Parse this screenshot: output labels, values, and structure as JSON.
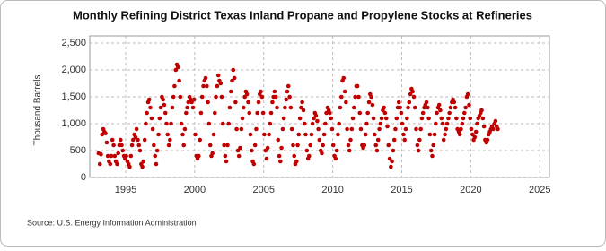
{
  "chart_data": {
    "type": "scatter",
    "title": "Monthly Refining District Texas Inland Propane and Propylene Stocks at Refineries",
    "y_label": "Thousand Barrels",
    "source": "Source: U.S. Energy Information Administration",
    "color": "#c00000",
    "grid": true,
    "xlim": [
      1992.4,
      2025.7
    ],
    "xticks": [
      1995,
      2000,
      2005,
      2010,
      2015,
      2020,
      2025
    ],
    "ylim": [
      0,
      2500
    ],
    "yticks": [
      0,
      500,
      {
        "value": 1000,
        "label": "1,000"
      },
      {
        "value": 1500,
        "label": "1,500"
      },
      {
        "value": 2000,
        "label": "2,000"
      },
      {
        "value": 2500,
        "label": "2,500"
      }
    ],
    "x": [
      1993.04,
      1993.13,
      1993.21,
      1993.29,
      1993.38,
      1993.46,
      1993.54,
      1993.63,
      1993.71,
      1993.79,
      1993.88,
      1993.96,
      1994.04,
      1994.13,
      1994.21,
      1994.29,
      1994.38,
      1994.46,
      1994.54,
      1994.63,
      1994.71,
      1994.79,
      1994.88,
      1994.96,
      1995.04,
      1995.13,
      1995.21,
      1995.29,
      1995.38,
      1995.46,
      1995.54,
      1995.63,
      1995.71,
      1995.79,
      1995.88,
      1995.96,
      1996.04,
      1996.13,
      1996.21,
      1996.29,
      1996.38,
      1996.46,
      1996.54,
      1996.63,
      1996.71,
      1996.79,
      1996.88,
      1996.96,
      1997.04,
      1997.13,
      1997.21,
      1997.29,
      1997.38,
      1997.46,
      1997.54,
      1997.63,
      1997.71,
      1997.79,
      1997.88,
      1997.96,
      1998.04,
      1998.13,
      1998.21,
      1998.29,
      1998.38,
      1998.46,
      1998.54,
      1998.63,
      1998.71,
      1998.79,
      1998.88,
      1998.96,
      1999.04,
      1999.13,
      1999.21,
      1999.29,
      1999.38,
      1999.46,
      1999.54,
      1999.63,
      1999.71,
      1999.79,
      1999.88,
      1999.96,
      2000.04,
      2000.13,
      2000.21,
      2000.29,
      2000.38,
      2000.46,
      2000.54,
      2000.63,
      2000.71,
      2000.79,
      2000.88,
      2000.96,
      2001.04,
      2001.13,
      2001.21,
      2001.29,
      2001.38,
      2001.46,
      2001.54,
      2001.63,
      2001.71,
      2001.79,
      2001.88,
      2001.96,
      2002.04,
      2002.13,
      2002.21,
      2002.29,
      2002.38,
      2002.46,
      2002.54,
      2002.63,
      2002.71,
      2002.79,
      2002.88,
      2002.96,
      2003.04,
      2003.13,
      2003.21,
      2003.29,
      2003.38,
      2003.46,
      2003.54,
      2003.63,
      2003.71,
      2003.79,
      2003.88,
      2003.96,
      2004.04,
      2004.13,
      2004.21,
      2004.29,
      2004.38,
      2004.46,
      2004.54,
      2004.63,
      2004.71,
      2004.79,
      2004.88,
      2004.96,
      2005.04,
      2005.13,
      2005.21,
      2005.29,
      2005.38,
      2005.46,
      2005.54,
      2005.63,
      2005.71,
      2005.79,
      2005.88,
      2005.96,
      2006.04,
      2006.13,
      2006.21,
      2006.29,
      2006.38,
      2006.46,
      2006.54,
      2006.63,
      2006.71,
      2006.79,
      2006.88,
      2006.96,
      2007.04,
      2007.13,
      2007.21,
      2007.29,
      2007.38,
      2007.46,
      2007.54,
      2007.63,
      2007.71,
      2007.79,
      2007.88,
      2007.96,
      2008.04,
      2008.13,
      2008.21,
      2008.29,
      2008.38,
      2008.46,
      2008.54,
      2008.63,
      2008.71,
      2008.79,
      2008.88,
      2008.96,
      2009.04,
      2009.13,
      2009.21,
      2009.29,
      2009.38,
      2009.46,
      2009.54,
      2009.63,
      2009.71,
      2009.79,
      2009.88,
      2009.96,
      2010.04,
      2010.13,
      2010.21,
      2010.29,
      2010.38,
      2010.46,
      2010.54,
      2010.63,
      2010.71,
      2010.79,
      2010.88,
      2010.96,
      2011.04,
      2011.13,
      2011.21,
      2011.29,
      2011.38,
      2011.46,
      2011.54,
      2011.63,
      2011.71,
      2011.79,
      2011.88,
      2011.96,
      2012.04,
      2012.13,
      2012.21,
      2012.29,
      2012.38,
      2012.46,
      2012.54,
      2012.63,
      2012.71,
      2012.79,
      2012.88,
      2012.96,
      2013.04,
      2013.13,
      2013.21,
      2013.29,
      2013.38,
      2013.46,
      2013.54,
      2013.63,
      2013.71,
      2013.79,
      2013.88,
      2013.96,
      2014.04,
      2014.13,
      2014.21,
      2014.29,
      2014.38,
      2014.46,
      2014.54,
      2014.63,
      2014.71,
      2014.79,
      2014.88,
      2014.96,
      2015.04,
      2015.13,
      2015.21,
      2015.29,
      2015.38,
      2015.46,
      2015.54,
      2015.63,
      2015.71,
      2015.79,
      2015.88,
      2015.96,
      2016.04,
      2016.13,
      2016.21,
      2016.29,
      2016.38,
      2016.46,
      2016.54,
      2016.63,
      2016.71,
      2016.79,
      2016.88,
      2016.96,
      2017.04,
      2017.13,
      2017.21,
      2017.29,
      2017.38,
      2017.46,
      2017.54,
      2017.63,
      2017.71,
      2017.79,
      2017.88,
      2017.96,
      2018.04,
      2018.13,
      2018.21,
      2018.29,
      2018.38,
      2018.46,
      2018.54,
      2018.63,
      2018.71,
      2018.79,
      2018.88,
      2018.96,
      2019.04,
      2019.13,
      2019.21,
      2019.29,
      2019.38,
      2019.46,
      2019.54,
      2019.63,
      2019.71,
      2019.79,
      2019.88,
      2019.96,
      2020.04,
      2020.13,
      2020.21,
      2020.29,
      2020.38,
      2020.46,
      2020.54,
      2020.63,
      2020.71,
      2020.79,
      2020.88,
      2020.96,
      2021.04,
      2021.13,
      2021.21,
      2021.29,
      2021.38,
      2021.46,
      2021.54,
      2021.63,
      2021.71,
      2021.79,
      2021.88,
      2021.96
    ],
    "values": [
      450,
      250,
      430,
      800,
      900,
      850,
      820,
      650,
      400,
      300,
      250,
      400,
      700,
      600,
      400,
      300,
      250,
      450,
      600,
      700,
      600,
      500,
      400,
      350,
      400,
      300,
      250,
      200,
      400,
      600,
      700,
      800,
      750,
      900,
      700,
      600,
      500,
      250,
      200,
      300,
      700,
      1000,
      1200,
      1400,
      1450,
      1300,
      1100,
      900,
      600,
      400,
      250,
      500,
      800,
      1100,
      1300,
      1500,
      1450,
      1350,
      1200,
      1000,
      800,
      600,
      700,
      1000,
      1300,
      1500,
      1700,
      2000,
      2100,
      2050,
      1800,
      1500,
      1000,
      800,
      600,
      900,
      1200,
      1300,
      1400,
      1500,
      1450,
      1400,
      1300,
      1450,
      800,
      400,
      350,
      400,
      700,
      1200,
      1500,
      1700,
      1800,
      1850,
      1700,
      1400,
      1000,
      600,
      400,
      450,
      800,
      1200,
      1500,
      1700,
      1900,
      1800,
      1750,
      1500,
      1000,
      600,
      400,
      300,
      600,
      1000,
      1300,
      1600,
      1800,
      2000,
      1850,
      1400,
      900,
      500,
      400,
      550,
      900,
      1100,
      1300,
      1500,
      1600,
      1550,
      1400,
      1200,
      800,
      500,
      300,
      250,
      600,
      900,
      1200,
      1400,
      1550,
      1600,
      1500,
      1200,
      800,
      500,
      350,
      550,
      800,
      1000,
      1200,
      1400,
      1500,
      1600,
      1500,
      1300,
      700,
      400,
      300,
      550,
      900,
      1100,
      1300,
      1450,
      1600,
      1700,
      1500,
      1300,
      900,
      600,
      400,
      250,
      300,
      600,
      800,
      1100,
      1300,
      1400,
      1250,
      1000,
      800,
      500,
      350,
      400,
      600,
      800,
      1000,
      1100,
      1200,
      1150,
      1050,
      900,
      700,
      500,
      450,
      600,
      800,
      1000,
      1200,
      1300,
      1250,
      1200,
      1100,
      900,
      600,
      400,
      350,
      500,
      800,
      1000,
      1300,
      1500,
      1800,
      1850,
      1600,
      1400,
      900,
      600,
      500,
      700,
      900,
      1100,
      1300,
      1500,
      1700,
      1700,
      1500,
      1200,
      900,
      600,
      550,
      600,
      800,
      1000,
      1200,
      1400,
      1550,
      1500,
      1350,
      1100,
      800,
      600,
      500,
      700,
      900,
      1000,
      1100,
      1250,
      1300,
      1200,
      1100,
      950,
      600,
      350,
      200,
      300,
      500,
      700,
      900,
      1100,
      1300,
      1400,
      1300,
      1200,
      1000,
      800,
      700,
      900,
      1100,
      1300,
      1400,
      1550,
      1650,
      1600,
      1500,
      1300,
      900,
      600,
      500,
      700,
      900,
      1100,
      1200,
      1300,
      1350,
      1400,
      1300,
      1100,
      800,
      500,
      400,
      600,
      800,
      1000,
      1200,
      1300,
      1350,
      1250,
      1100,
      1000,
      700,
      800,
      900,
      1000,
      1100,
      1200,
      1300,
      1400,
      1450,
      1400,
      1300,
      1100,
      900,
      850,
      800,
      900,
      1000,
      1100,
      1200,
      1300,
      1500,
      1550,
      1350,
      1100,
      900,
      800,
      700,
      750,
      850,
      1000,
      1100,
      1150,
      1200,
      1250,
      1100,
      950,
      700,
      650,
      700,
      800,
      850,
      900,
      950,
      900,
      1000,
      1050,
      950,
      900
    ]
  }
}
